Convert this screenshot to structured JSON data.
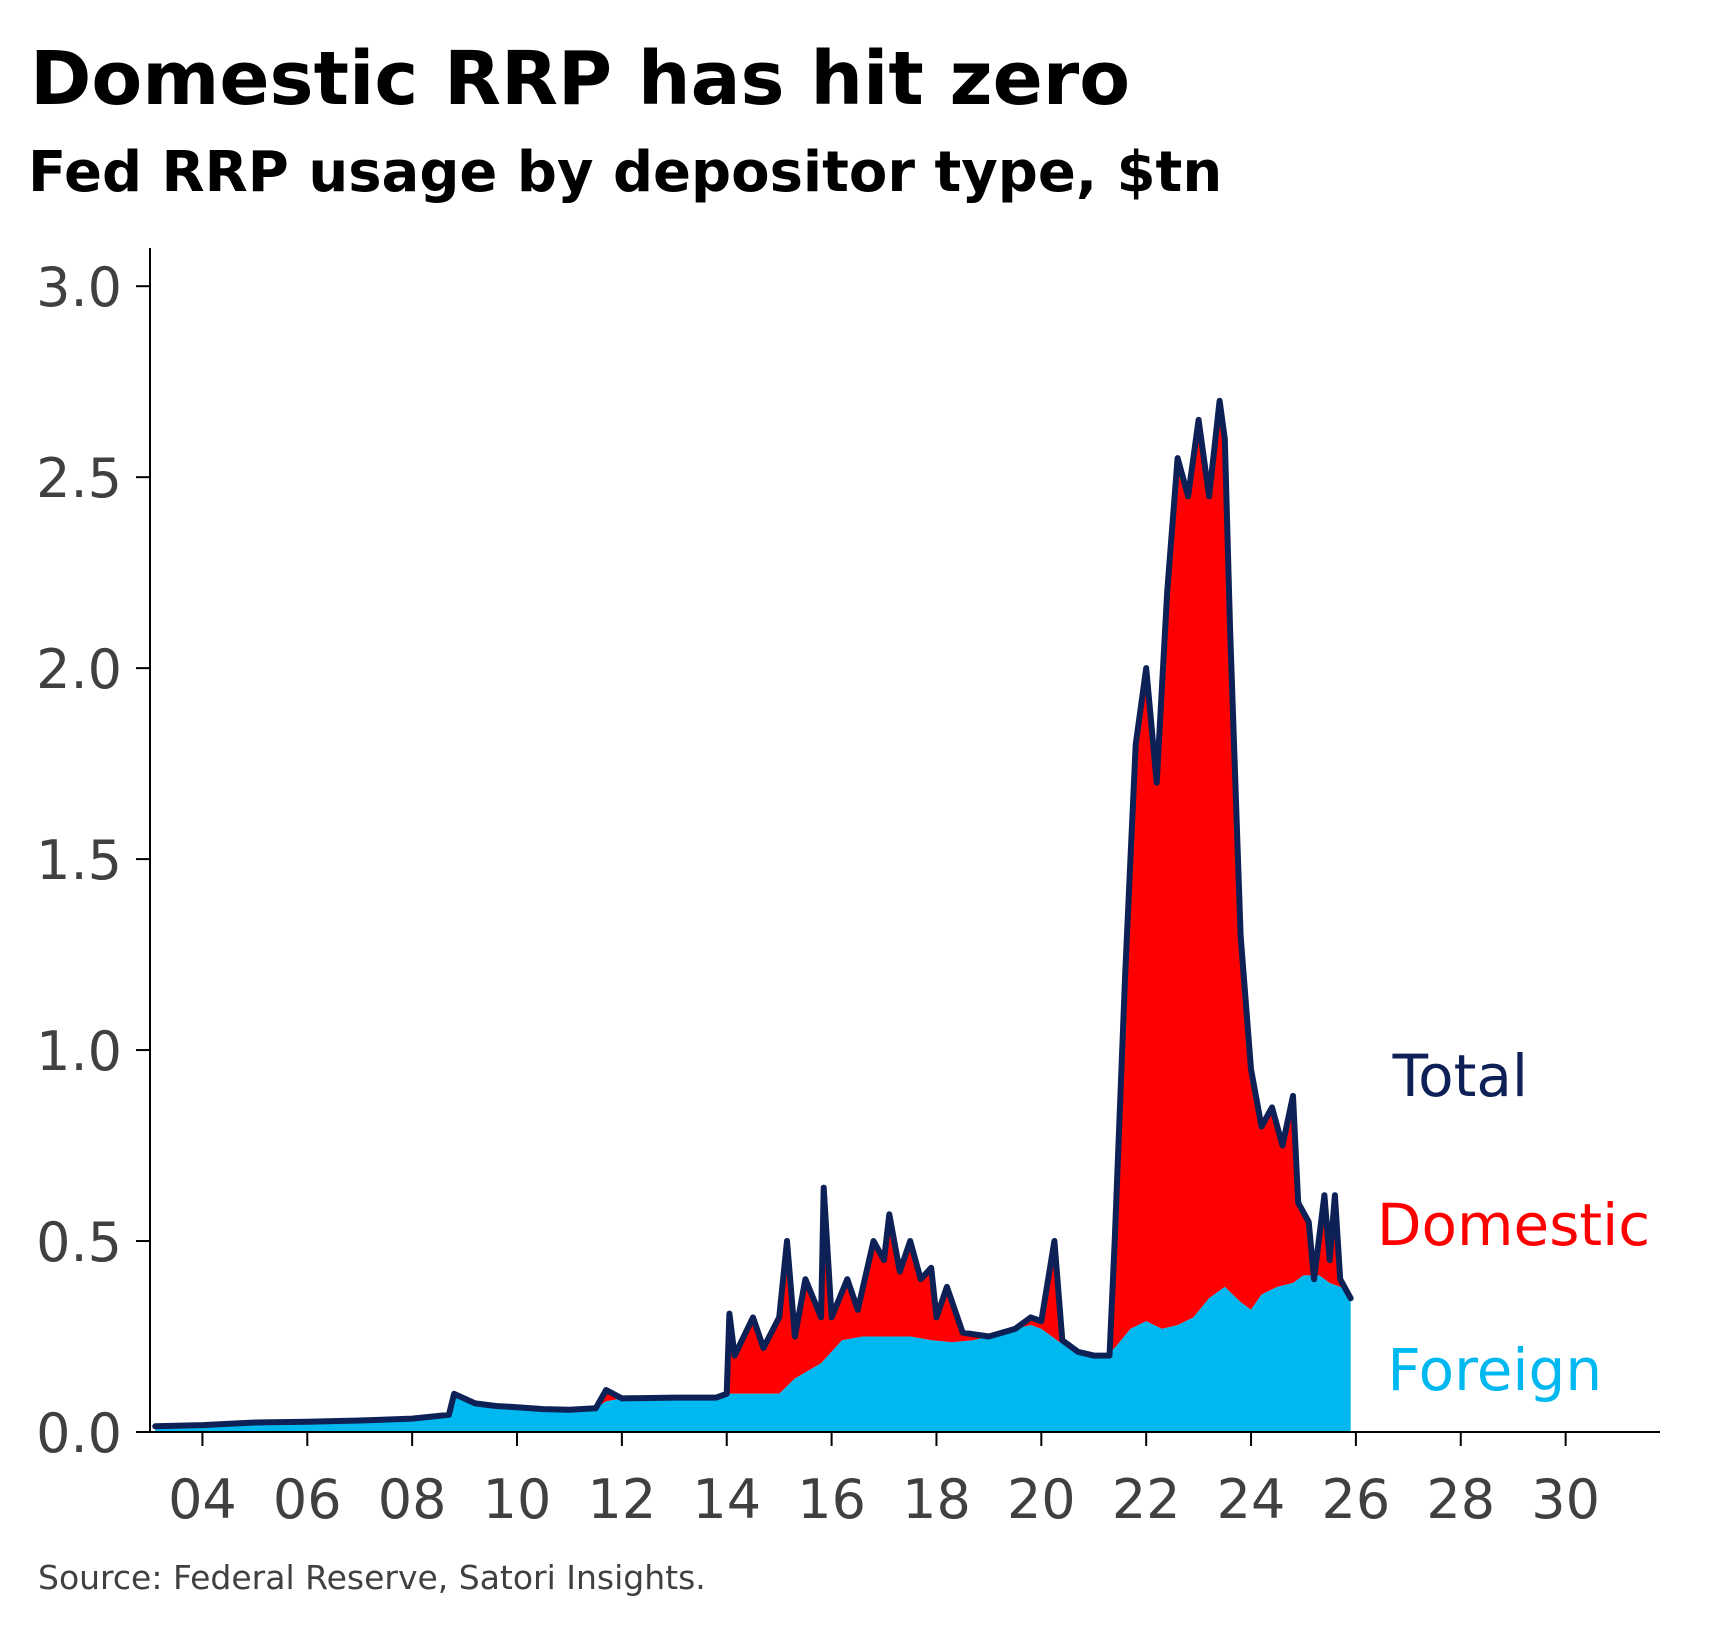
{
  "title": "Domestic RRP has hit zero",
  "subtitle": "Fed RRP usage by depositor type, $tn",
  "source": "Source: Federal Reserve, Satori Insights.",
  "colors": {
    "total": "#0d2156",
    "domestic": "#ff0000",
    "foreign": "#00b8f0",
    "axis": "#000000",
    "tick_text": "#404040"
  },
  "chart_data": {
    "type": "area",
    "stacked": true,
    "xlim": [
      2003,
      2031.8
    ],
    "ylim": [
      0,
      3.1
    ],
    "x_ticks": [
      2004,
      2006,
      2008,
      2010,
      2012,
      2014,
      2016,
      2018,
      2020,
      2022,
      2024,
      2026,
      2028,
      2030
    ],
    "x_tick_labels": [
      "04",
      "06",
      "08",
      "10",
      "12",
      "14",
      "16",
      "18",
      "20",
      "22",
      "24",
      "26",
      "28",
      "30"
    ],
    "y_ticks": [
      0,
      0.5,
      1.0,
      1.5,
      2.0,
      2.5,
      3.0
    ],
    "y_tick_labels": [
      "0.0",
      "0.5",
      "1.0",
      "1.5",
      "2.0",
      "2.5",
      "3.0"
    ],
    "grid": false,
    "legend": "direct labels at right of series end",
    "series": [
      {
        "name": "Foreign",
        "label_color": "#00b8f0",
        "points": [
          [
            2003.1,
            0.015
          ],
          [
            2004.0,
            0.018
          ],
          [
            2005.0,
            0.025
          ],
          [
            2006.0,
            0.027
          ],
          [
            2007.0,
            0.03
          ],
          [
            2008.0,
            0.035
          ],
          [
            2008.7,
            0.045
          ],
          [
            2008.8,
            0.09
          ],
          [
            2009.2,
            0.075
          ],
          [
            2009.6,
            0.068
          ],
          [
            2010.0,
            0.065
          ],
          [
            2010.5,
            0.06
          ],
          [
            2011.0,
            0.058
          ],
          [
            2011.5,
            0.062
          ],
          [
            2011.7,
            0.08
          ],
          [
            2012.0,
            0.088
          ],
          [
            2013.0,
            0.09
          ],
          [
            2013.8,
            0.09
          ],
          [
            2014.0,
            0.1
          ],
          [
            2014.5,
            0.1
          ],
          [
            2015.0,
            0.1
          ],
          [
            2015.3,
            0.14
          ],
          [
            2015.8,
            0.18
          ],
          [
            2016.2,
            0.24
          ],
          [
            2016.6,
            0.25
          ],
          [
            2017.0,
            0.25
          ],
          [
            2017.5,
            0.25
          ],
          [
            2017.9,
            0.24
          ],
          [
            2018.3,
            0.235
          ],
          [
            2018.7,
            0.24
          ],
          [
            2019.0,
            0.25
          ],
          [
            2019.5,
            0.27
          ],
          [
            2019.8,
            0.28
          ],
          [
            2020.0,
            0.27
          ],
          [
            2020.3,
            0.24
          ],
          [
            2020.6,
            0.21
          ],
          [
            2020.9,
            0.2
          ],
          [
            2021.2,
            0.2
          ],
          [
            2021.4,
            0.22
          ],
          [
            2021.7,
            0.27
          ],
          [
            2022.0,
            0.29
          ],
          [
            2022.3,
            0.27
          ],
          [
            2022.6,
            0.28
          ],
          [
            2022.9,
            0.3
          ],
          [
            2023.2,
            0.35
          ],
          [
            2023.5,
            0.38
          ],
          [
            2023.8,
            0.34
          ],
          [
            2024.0,
            0.32
          ],
          [
            2024.2,
            0.36
          ],
          [
            2024.5,
            0.38
          ],
          [
            2024.8,
            0.39
          ],
          [
            2025.0,
            0.41
          ],
          [
            2025.3,
            0.41
          ],
          [
            2025.5,
            0.39
          ],
          [
            2025.7,
            0.38
          ],
          [
            2025.9,
            0.36
          ]
        ]
      },
      {
        "name": "Domestic",
        "label_color": "#ff0000",
        "points": []
      },
      {
        "name": "Total",
        "label_color": "#0d2156",
        "points": [
          [
            2003.1,
            0.015
          ],
          [
            2004.0,
            0.018
          ],
          [
            2005.0,
            0.025
          ],
          [
            2006.0,
            0.027
          ],
          [
            2007.0,
            0.03
          ],
          [
            2008.0,
            0.035
          ],
          [
            2008.7,
            0.045
          ],
          [
            2008.8,
            0.1
          ],
          [
            2009.2,
            0.075
          ],
          [
            2009.6,
            0.068
          ],
          [
            2010.0,
            0.065
          ],
          [
            2010.5,
            0.06
          ],
          [
            2011.0,
            0.058
          ],
          [
            2011.5,
            0.062
          ],
          [
            2011.7,
            0.11
          ],
          [
            2012.0,
            0.088
          ],
          [
            2013.0,
            0.09
          ],
          [
            2013.8,
            0.09
          ],
          [
            2014.0,
            0.1
          ],
          [
            2014.05,
            0.31
          ],
          [
            2014.15,
            0.2
          ],
          [
            2014.5,
            0.3
          ],
          [
            2014.7,
            0.22
          ],
          [
            2015.0,
            0.3
          ],
          [
            2015.15,
            0.5
          ],
          [
            2015.3,
            0.25
          ],
          [
            2015.5,
            0.4
          ],
          [
            2015.8,
            0.3
          ],
          [
            2015.85,
            0.64
          ],
          [
            2016.0,
            0.3
          ],
          [
            2016.3,
            0.4
          ],
          [
            2016.5,
            0.32
          ],
          [
            2016.8,
            0.5
          ],
          [
            2017.0,
            0.45
          ],
          [
            2017.1,
            0.57
          ],
          [
            2017.3,
            0.42
          ],
          [
            2017.5,
            0.5
          ],
          [
            2017.7,
            0.4
          ],
          [
            2017.9,
            0.43
          ],
          [
            2018.0,
            0.3
          ],
          [
            2018.2,
            0.38
          ],
          [
            2018.5,
            0.26
          ],
          [
            2019.0,
            0.25
          ],
          [
            2019.5,
            0.27
          ],
          [
            2019.8,
            0.3
          ],
          [
            2020.0,
            0.29
          ],
          [
            2020.25,
            0.5
          ],
          [
            2020.4,
            0.24
          ],
          [
            2020.7,
            0.21
          ],
          [
            2021.0,
            0.2
          ],
          [
            2021.3,
            0.2
          ],
          [
            2021.4,
            0.5
          ],
          [
            2021.6,
            1.2
          ],
          [
            2021.8,
            1.8
          ],
          [
            2022.0,
            2.0
          ],
          [
            2022.2,
            1.7
          ],
          [
            2022.4,
            2.2
          ],
          [
            2022.6,
            2.55
          ],
          [
            2022.8,
            2.45
          ],
          [
            2023.0,
            2.65
          ],
          [
            2023.2,
            2.45
          ],
          [
            2023.4,
            2.7
          ],
          [
            2023.5,
            2.6
          ],
          [
            2023.6,
            2.1
          ],
          [
            2023.8,
            1.3
          ],
          [
            2024.0,
            0.95
          ],
          [
            2024.2,
            0.8
          ],
          [
            2024.4,
            0.85
          ],
          [
            2024.6,
            0.75
          ],
          [
            2024.8,
            0.88
          ],
          [
            2024.9,
            0.6
          ],
          [
            2025.1,
            0.55
          ],
          [
            2025.2,
            0.4
          ],
          [
            2025.4,
            0.62
          ],
          [
            2025.5,
            0.45
          ],
          [
            2025.6,
            0.62
          ],
          [
            2025.7,
            0.4
          ],
          [
            2025.9,
            0.35
          ]
        ]
      }
    ],
    "labels": {
      "total": "Total",
      "domestic": "Domestic",
      "foreign": "Foreign"
    }
  }
}
